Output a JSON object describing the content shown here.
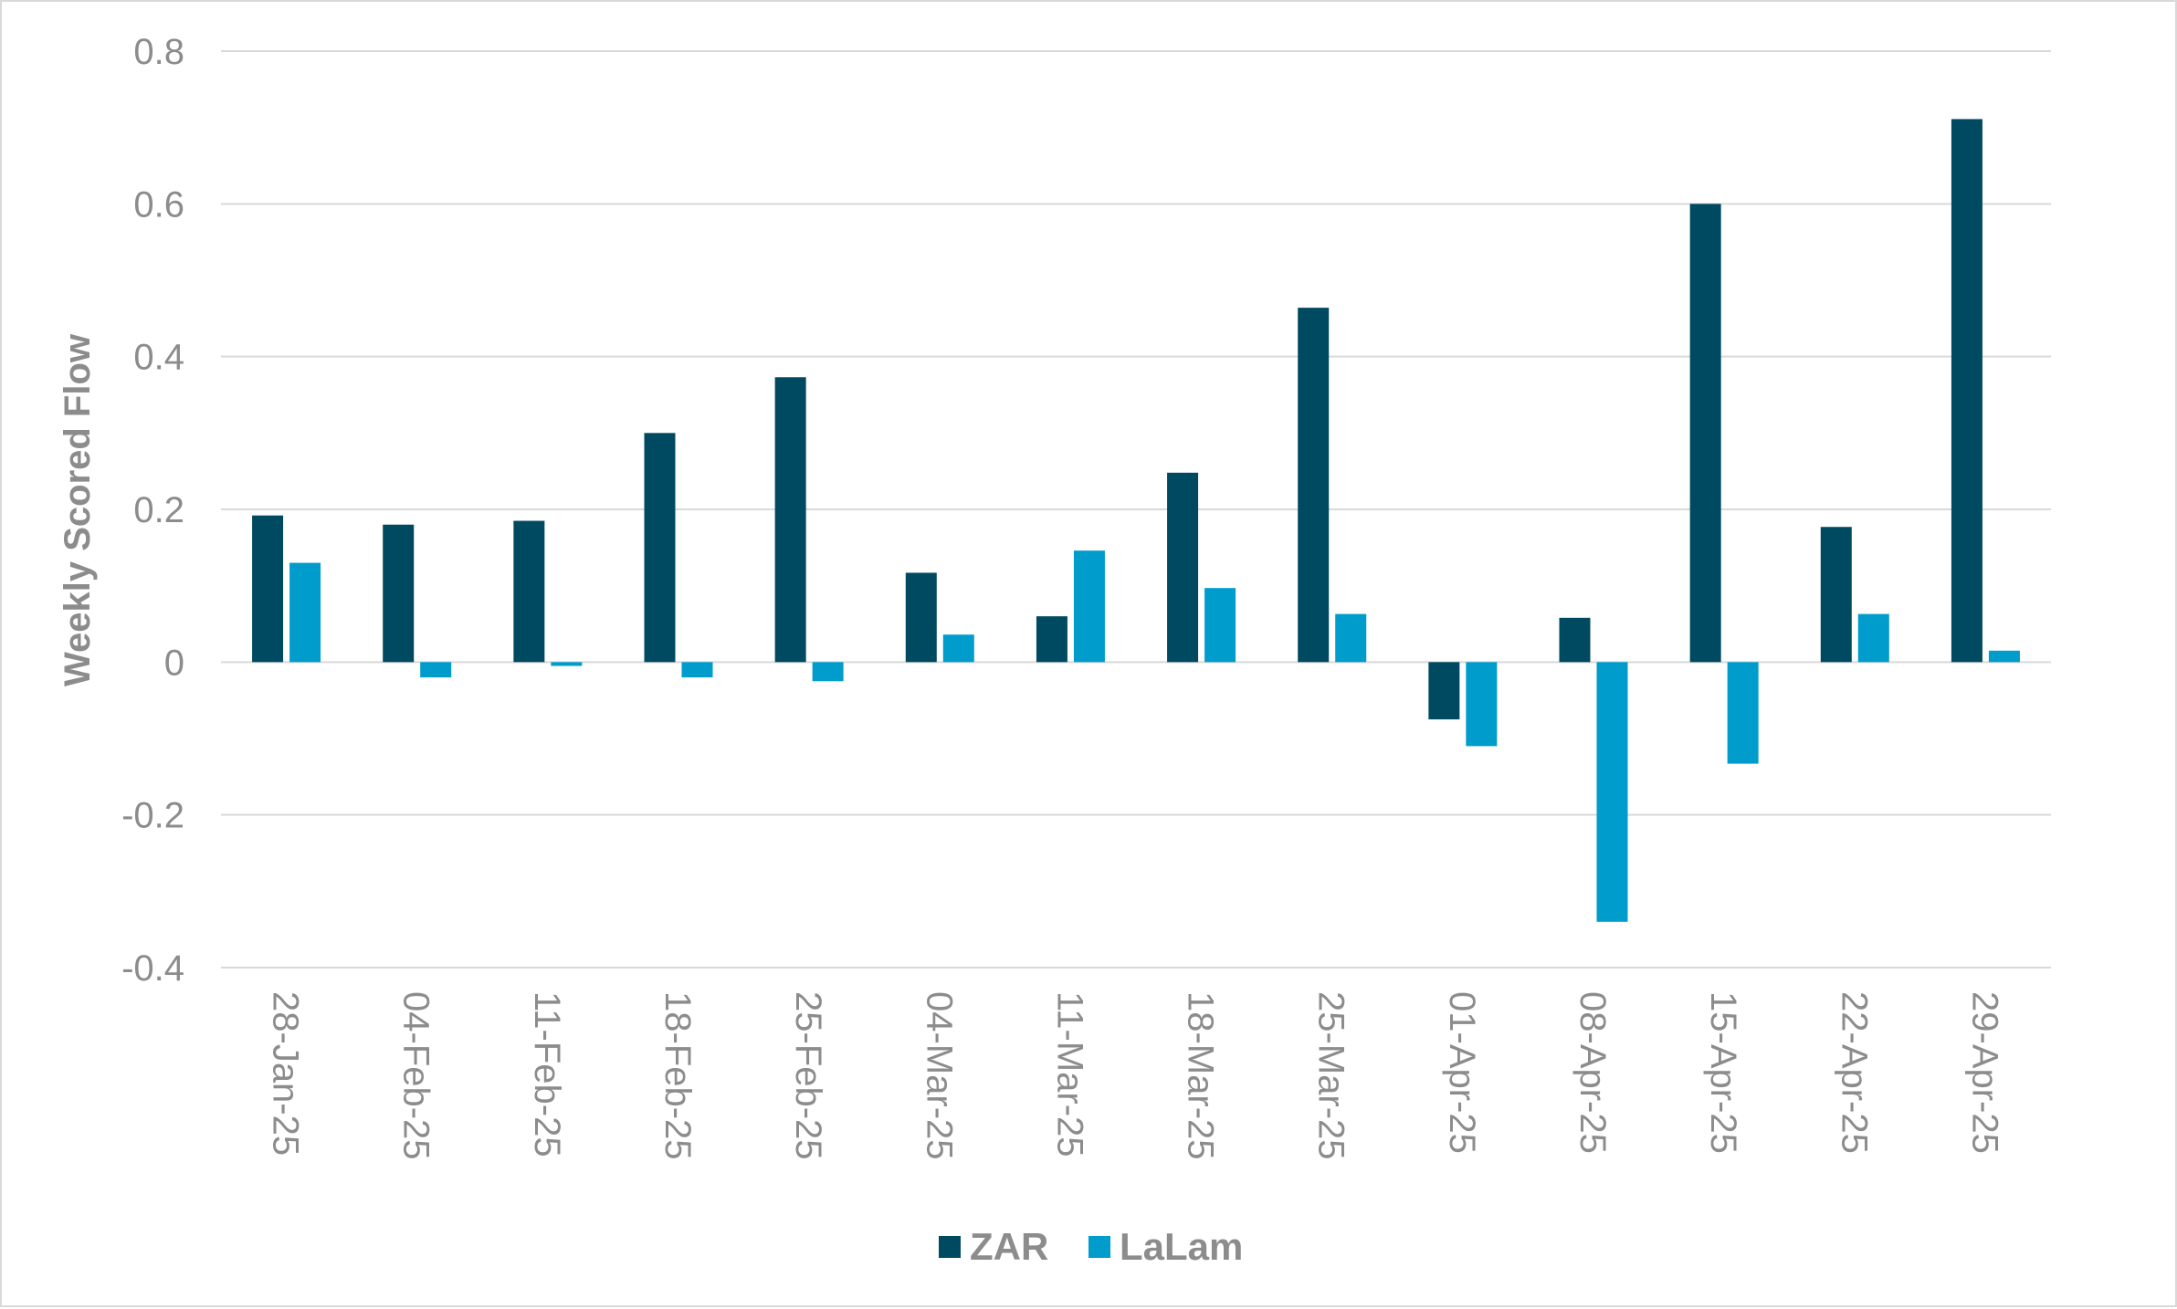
{
  "chart_data": {
    "type": "bar",
    "categories": [
      "28-Jan-25",
      "04-Feb-25",
      "11-Feb-25",
      "18-Feb-25",
      "25-Feb-25",
      "04-Mar-25",
      "11-Mar-25",
      "18-Mar-25",
      "25-Mar-25",
      "01-Apr-25",
      "08-Apr-25",
      "15-Apr-25",
      "22-Apr-25",
      "29-Apr-25"
    ],
    "series": [
      {
        "name": "ZAR",
        "color": "#004a61",
        "values": [
          0.192,
          0.18,
          0.185,
          0.3,
          0.373,
          0.117,
          0.06,
          0.248,
          0.464,
          -0.075,
          0.058,
          0.6,
          0.177,
          0.711
        ]
      },
      {
        "name": "LaLam",
        "color": "#009ccc",
        "values": [
          0.13,
          -0.02,
          -0.005,
          -0.02,
          -0.025,
          0.036,
          0.146,
          0.097,
          0.063,
          -0.11,
          -0.34,
          -0.133,
          0.063,
          0.015
        ]
      }
    ],
    "ylabel": "Weekly Scored Flow",
    "xlabel": "",
    "ylim": [
      -0.4,
      0.8
    ],
    "yticks": [
      0.8,
      0.6,
      0.4,
      0.2,
      0,
      -0.2,
      -0.4
    ],
    "ytick_labels": [
      "0.8",
      "0.6",
      "0.4",
      "0.2",
      "0",
      "-0.2",
      "-0.4"
    ],
    "grid": true,
    "legend_position": "bottom-center",
    "gridline_color": "#d9d9d9"
  }
}
